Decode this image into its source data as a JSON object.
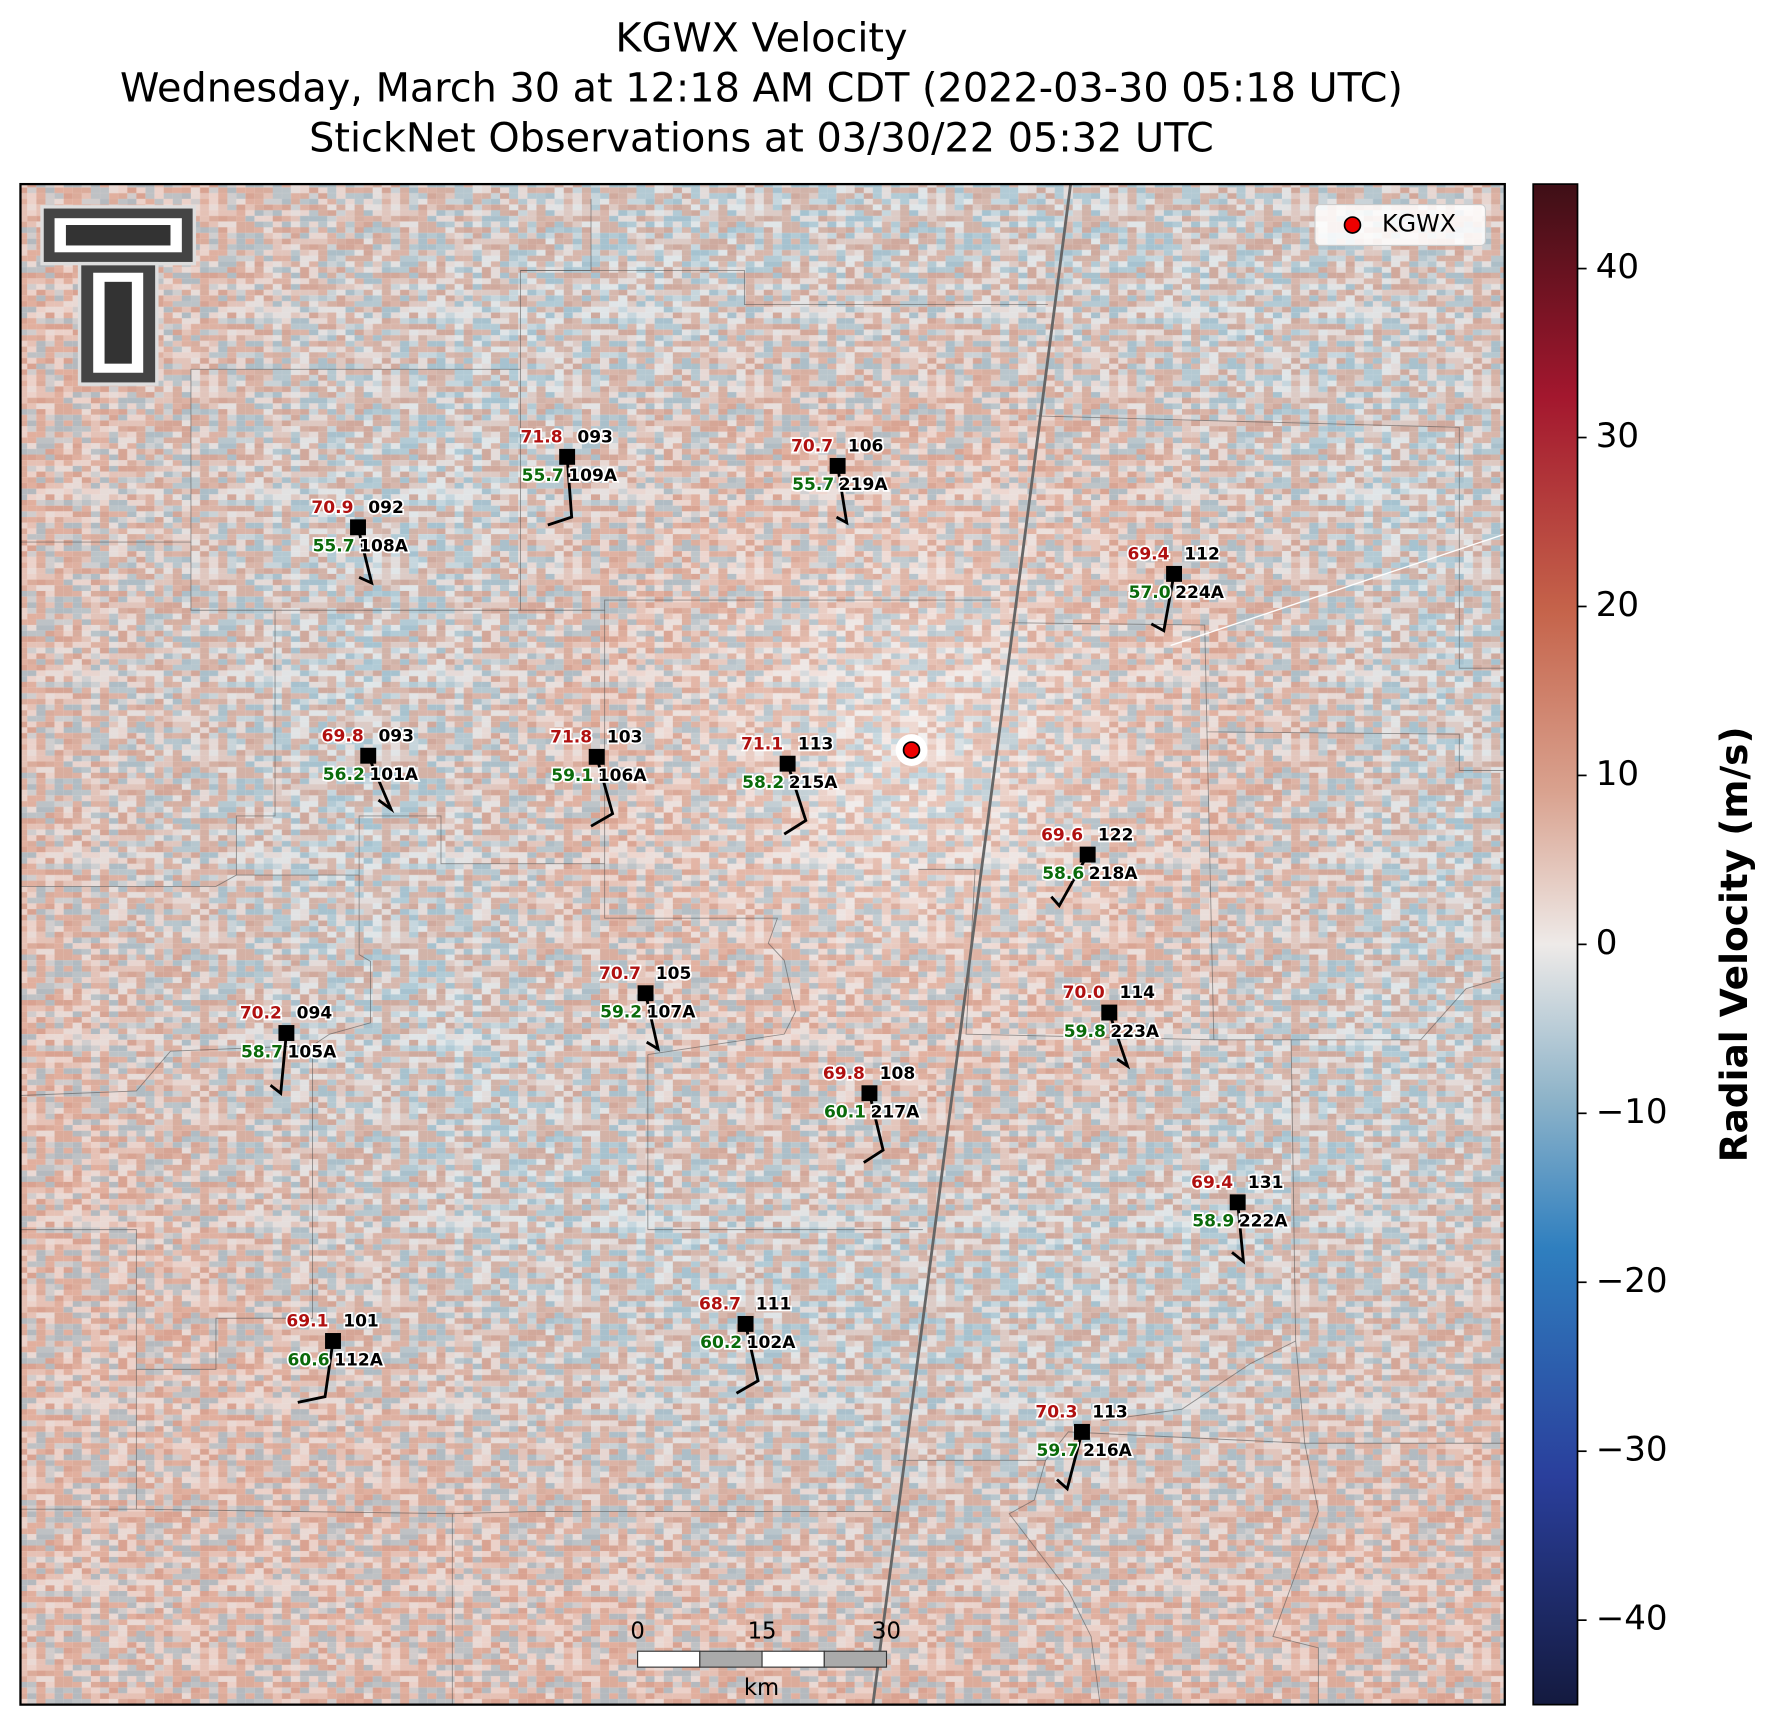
{
  "title_lines": [
    "KGWX Velocity",
    "Wednesday, March 30 at 12:18 AM CDT (2022-03-30 05:18 UTC)",
    "StickNet Observations at 03/30/22 05:32 UTC"
  ],
  "legend": {
    "label": "KGWX"
  },
  "colorbar": {
    "label": "Radial Velocity (m/s)",
    "ylim": [
      -45,
      45
    ],
    "yticks": [
      {
        "value": -40,
        "label": "−40"
      },
      {
        "value": -30,
        "label": "−30"
      },
      {
        "value": -20,
        "label": "−20"
      },
      {
        "value": -10,
        "label": "−10"
      },
      0,
      10,
      20,
      30,
      40
    ]
  },
  "scale_bar": {
    "ticks": [
      0,
      15,
      30
    ],
    "unit": "km"
  },
  "stations": [
    {
      "temperature": "71.8",
      "dewpoint": "55.7",
      "number": "093",
      "id": "109A"
    },
    {
      "temperature": "70.7",
      "dewpoint": "55.7",
      "number": "106",
      "id": "219A"
    },
    {
      "temperature": "70.9",
      "dewpoint": "55.7",
      "number": "092",
      "id": "108A"
    },
    {
      "temperature": "69.4",
      "dewpoint": "57.0",
      "number": "112",
      "id": "224A"
    },
    {
      "temperature": "69.8",
      "dewpoint": "56.2",
      "number": "093",
      "id": "101A"
    },
    {
      "temperature": "71.8",
      "dewpoint": "59.1",
      "number": "103",
      "id": "106A"
    },
    {
      "temperature": "71.1",
      "dewpoint": "58.2",
      "number": "113",
      "id": "215A"
    },
    {
      "temperature": "69.6",
      "dewpoint": "58.6",
      "number": "122",
      "id": "218A"
    },
    {
      "temperature": "70.7",
      "dewpoint": "59.2",
      "number": "105",
      "id": "107A"
    },
    {
      "temperature": "70.0",
      "dewpoint": "59.8",
      "number": "114",
      "id": "223A"
    },
    {
      "temperature": "70.2",
      "dewpoint": "58.7",
      "number": "094",
      "id": "105A"
    },
    {
      "temperature": "69.8",
      "dewpoint": "60.1",
      "number": "108",
      "id": "217A"
    },
    {
      "temperature": "69.4",
      "dewpoint": "58.9",
      "number": "131",
      "id": "222A"
    },
    {
      "temperature": "68.7",
      "dewpoint": "60.2",
      "number": "111",
      "id": "102A"
    },
    {
      "temperature": "69.1",
      "dewpoint": "60.6",
      "number": "101",
      "id": "112A"
    },
    {
      "temperature": "70.3",
      "dewpoint": "59.7",
      "number": "113",
      "id": "216A"
    }
  ]
}
